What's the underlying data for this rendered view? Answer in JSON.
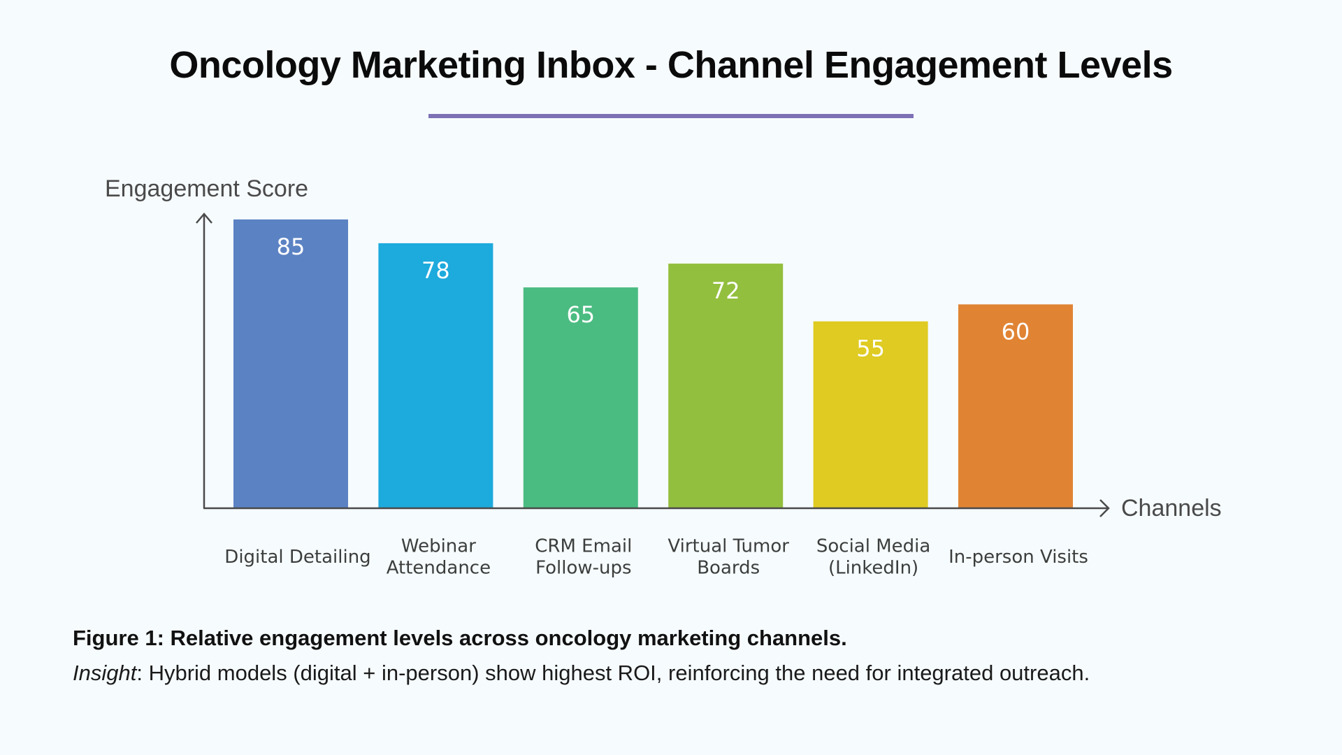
{
  "header": {
    "title": "Oncology Marketing Inbox - Channel Engagement Levels",
    "accent_color": "#7d71b5"
  },
  "chart_data": {
    "type": "bar",
    "title": "Oncology Marketing Inbox - Channel Engagement Levels",
    "xlabel": "Channels",
    "ylabel": "Engagement Score",
    "ylim": [
      0,
      90
    ],
    "grid": false,
    "categories": [
      "Digital Detailing",
      "Webinar Attendance",
      "CRM Email Follow-ups",
      "Virtual Tumor Boards",
      "Social Media (LinkedIn)",
      "In-person Visits"
    ],
    "category_lines": [
      [
        "Digital Detailing"
      ],
      [
        "Webinar",
        "Attendance"
      ],
      [
        "CRM Email",
        "Follow-ups"
      ],
      [
        "Virtual Tumor",
        "Boards"
      ],
      [
        "Social Media",
        "(LinkedIn)"
      ],
      [
        "In-person Visits"
      ]
    ],
    "values": [
      85,
      78,
      65,
      72,
      55,
      60
    ],
    "colors": [
      "#5b82c3",
      "#1daadd",
      "#4bbc81",
      "#93bf3e",
      "#dfcb22",
      "#e08434"
    ],
    "data_labels": [
      "85",
      "78",
      "65",
      "72",
      "55",
      "60"
    ]
  },
  "caption": {
    "figure_text": "Figure 1: Relative engagement levels across oncology marketing channels.",
    "insight_label": "Insight",
    "insight_text": ":  Hybrid models (digital + in-person) show highest ROI, reinforcing the need for integrated outreach."
  }
}
